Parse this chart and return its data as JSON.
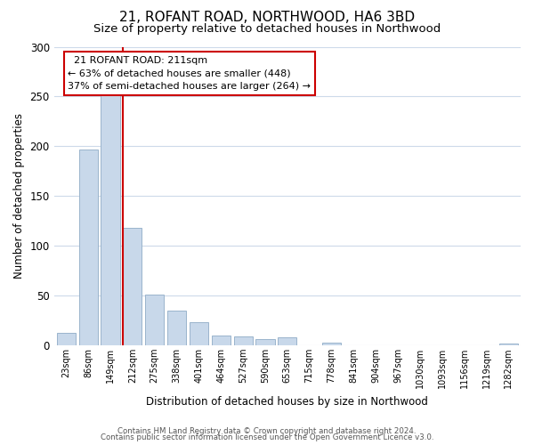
{
  "title": "21, ROFANT ROAD, NORTHWOOD, HA6 3BD",
  "subtitle": "Size of property relative to detached houses in Northwood",
  "xlabel": "Distribution of detached houses by size in Northwood",
  "ylabel": "Number of detached properties",
  "bar_labels": [
    "23sqm",
    "86sqm",
    "149sqm",
    "212sqm",
    "275sqm",
    "338sqm",
    "401sqm",
    "464sqm",
    "527sqm",
    "590sqm",
    "653sqm",
    "715sqm",
    "778sqm",
    "841sqm",
    "904sqm",
    "967sqm",
    "1030sqm",
    "1093sqm",
    "1156sqm",
    "1219sqm",
    "1282sqm"
  ],
  "bar_values": [
    12,
    197,
    251,
    118,
    51,
    35,
    23,
    10,
    9,
    6,
    8,
    0,
    3,
    0,
    0,
    0,
    0,
    0,
    0,
    0,
    2
  ],
  "bar_color": "#c8d8ea",
  "bar_edge_color": "#9ab4cc",
  "property_line_index": 3,
  "property_line_color": "#cc0000",
  "annotation_title": "21 ROFANT ROAD: 211sqm",
  "annotation_line1": "← 63% of detached houses are smaller (448)",
  "annotation_line2": "37% of semi-detached houses are larger (264) →",
  "annotation_box_color": "#ffffff",
  "annotation_box_edge_color": "#cc0000",
  "ylim": [
    0,
    300
  ],
  "yticks": [
    0,
    50,
    100,
    150,
    200,
    250,
    300
  ],
  "footer1": "Contains HM Land Registry data © Crown copyright and database right 2024.",
  "footer2": "Contains public sector information licensed under the Open Government Licence v3.0.",
  "bg_color": "#ffffff",
  "grid_color": "#cddaea",
  "title_fontsize": 11,
  "subtitle_fontsize": 9.5,
  "ylabel_fontsize": 8.5,
  "xlabel_fontsize": 8.5
}
